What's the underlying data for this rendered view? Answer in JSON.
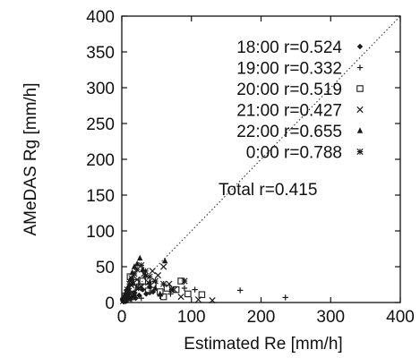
{
  "chart_data": {
    "type": "scatter",
    "title": "",
    "xlabel": "Estimated Re [mm/h]",
    "ylabel": "AMeDAS Rg [mm/h]",
    "xlim": [
      0,
      400
    ],
    "ylim": [
      0,
      400
    ],
    "xticks": [
      0,
      100,
      200,
      300,
      400
    ],
    "yticks": [
      0,
      50,
      100,
      150,
      200,
      250,
      300,
      350,
      400
    ],
    "diagonal": "dotted y=x line",
    "grid": false,
    "legend_position": "top-right",
    "total_label": "Total r=0.415",
    "colors": {
      "axis": "#111111",
      "marker": "#1a1a1a",
      "diagonal": "#333333"
    },
    "series": [
      {
        "name": "18:00 r=0.524",
        "marker": "diamond",
        "points": [
          [
            2,
            3
          ],
          [
            4,
            6
          ],
          [
            6,
            2
          ],
          [
            8,
            9
          ],
          [
            10,
            12
          ],
          [
            12,
            5
          ],
          [
            15,
            8
          ],
          [
            18,
            14
          ],
          [
            20,
            6
          ],
          [
            25,
            10
          ],
          [
            30,
            18
          ],
          [
            35,
            12
          ],
          [
            40,
            22
          ],
          [
            45,
            15
          ],
          [
            3,
            1
          ],
          [
            1,
            4
          ]
        ]
      },
      {
        "name": "19:00 r=0.332",
        "marker": "plus",
        "points": [
          [
            3,
            2
          ],
          [
            6,
            5
          ],
          [
            10,
            8
          ],
          [
            14,
            4
          ],
          [
            20,
            10
          ],
          [
            28,
            6
          ],
          [
            40,
            14
          ],
          [
            55,
            9
          ],
          [
            70,
            12
          ],
          [
            90,
            20
          ],
          [
            105,
            18
          ],
          [
            170,
            17
          ],
          [
            235,
            7
          ],
          [
            2,
            6
          ],
          [
            8,
            3
          ]
        ]
      },
      {
        "name": "20:00 r=0.519",
        "marker": "square",
        "points": [
          [
            5,
            4
          ],
          [
            9,
            12
          ],
          [
            12,
            36
          ],
          [
            16,
            20
          ],
          [
            20,
            28
          ],
          [
            25,
            22
          ],
          [
            30,
            30
          ],
          [
            38,
            16
          ],
          [
            45,
            25
          ],
          [
            55,
            15
          ],
          [
            65,
            20
          ],
          [
            78,
            18
          ],
          [
            85,
            30
          ],
          [
            95,
            12
          ],
          [
            115,
            11
          ],
          [
            60,
            8
          ]
        ]
      },
      {
        "name": "21:00 r=0.427",
        "marker": "cross",
        "points": [
          [
            4,
            8
          ],
          [
            7,
            14
          ],
          [
            10,
            16
          ],
          [
            14,
            24
          ],
          [
            18,
            10
          ],
          [
            22,
            32
          ],
          [
            28,
            22
          ],
          [
            32,
            40
          ],
          [
            38,
            28
          ],
          [
            44,
            44
          ],
          [
            52,
            38
          ],
          [
            60,
            50
          ],
          [
            68,
            26
          ],
          [
            75,
            18
          ],
          [
            85,
            8
          ],
          [
            110,
            4
          ],
          [
            130,
            3
          ]
        ]
      },
      {
        "name": "22:00 r=0.655",
        "marker": "triangle",
        "points": [
          [
            3,
            6
          ],
          [
            6,
            15
          ],
          [
            9,
            22
          ],
          [
            12,
            32
          ],
          [
            15,
            42
          ],
          [
            18,
            50
          ],
          [
            22,
            54
          ],
          [
            26,
            62
          ],
          [
            30,
            46
          ],
          [
            34,
            38
          ],
          [
            40,
            28
          ],
          [
            48,
            20
          ],
          [
            55,
            12
          ],
          [
            62,
            58
          ],
          [
            16,
            28
          ]
        ]
      },
      {
        "name": "0:00 r=0.788",
        "marker": "star",
        "points": [
          [
            2,
            2
          ],
          [
            5,
            10
          ],
          [
            8,
            18
          ],
          [
            11,
            26
          ],
          [
            14,
            34
          ],
          [
            18,
            40
          ],
          [
            22,
            46
          ],
          [
            28,
            52
          ],
          [
            34,
            44
          ],
          [
            40,
            36
          ],
          [
            48,
            30
          ],
          [
            60,
            26
          ],
          [
            72,
            18
          ],
          [
            90,
            30
          ],
          [
            24,
            20
          ]
        ]
      }
    ]
  }
}
